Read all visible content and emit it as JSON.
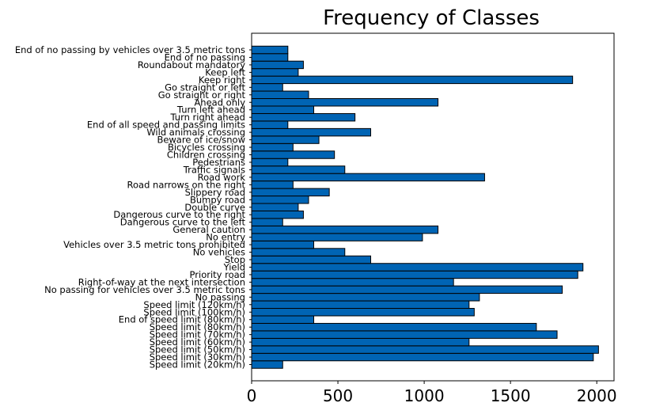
{
  "chart_data": {
    "type": "bar",
    "orientation": "horizontal",
    "title": "Frequency of Classes",
    "xlabel": "",
    "ylabel": "",
    "xlim": [
      0,
      2100
    ],
    "xticks": [
      0,
      500,
      1000,
      1500,
      2000
    ],
    "grid": false,
    "bar_color": "#0064b4",
    "categories": [
      "Speed limit (20km/h)",
      "Speed limit (30km/h)",
      "Speed limit (50km/h)",
      "Speed limit (60km/h)",
      "Speed limit (70km/h)",
      "Speed limit (80km/h)",
      "End of speed limit (80km/h)",
      "Speed limit (100km/h)",
      "Speed limit (120km/h)",
      "No passing",
      "No passing for vehicles over 3.5 metric tons",
      "Right-of-way at the next intersection",
      "Priority road",
      "Yield",
      "Stop",
      "No vehicles",
      "Vehicles over 3.5 metric tons prohibited",
      "No entry",
      "General caution",
      "Dangerous curve to the left",
      "Dangerous curve to the right",
      "Double curve",
      "Bumpy road",
      "Slippery road",
      "Road narrows on the right",
      "Road work",
      "Traffic signals",
      "Pedestrians",
      "Children crossing",
      "Bicycles crossing",
      "Beware of ice/snow",
      "Wild animals crossing",
      "End of all speed and passing limits",
      "Turn right ahead",
      "Turn left ahead",
      "Ahead only",
      "Go straight or right",
      "Go straight or left",
      "Keep right",
      "Keep left",
      "Roundabout mandatory",
      "End of no passing",
      "End of no passing by vehicles over 3.5 metric tons"
    ],
    "values": [
      180,
      1980,
      2010,
      1260,
      1770,
      1650,
      360,
      1290,
      1260,
      1320,
      1800,
      1170,
      1890,
      1920,
      690,
      540,
      360,
      990,
      1080,
      180,
      300,
      270,
      330,
      450,
      240,
      1350,
      540,
      210,
      480,
      240,
      390,
      690,
      210,
      599,
      360,
      1080,
      330,
      180,
      1860,
      270,
      300,
      210,
      210
    ]
  }
}
